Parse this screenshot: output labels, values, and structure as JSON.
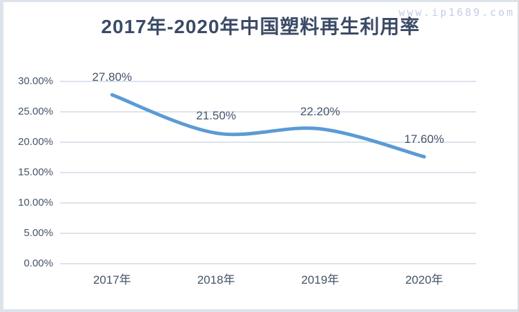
{
  "watermark": "www.ip1689.com",
  "chart_data": {
    "type": "line",
    "title": "2017年-2020年中国塑料再生利用率",
    "categories": [
      "2017年",
      "2018年",
      "2019年",
      "2020年"
    ],
    "values": [
      27.8,
      21.5,
      22.2,
      17.6
    ],
    "data_labels": [
      "27.80%",
      "21.50%",
      "22.20%",
      "17.60%"
    ],
    "y_ticks": [
      "0.00%",
      "5.00%",
      "10.00%",
      "15.00%",
      "20.00%",
      "25.00%",
      "30.00%"
    ],
    "ylim": [
      0,
      30
    ],
    "y_step": 5,
    "xlabel": "",
    "ylabel": "",
    "grid": true,
    "smooth": true,
    "legend": "none"
  },
  "colors": {
    "line": "#5B9BD5",
    "title_text": "#3B4A66",
    "axis_text": "#44546A",
    "gridline": "#DDE3EC",
    "frame_border": "#DCE3EB",
    "frame_border_right": "#D9DCE1",
    "watermark_text": "#C6CBE9",
    "background": "#FFFFFF"
  }
}
